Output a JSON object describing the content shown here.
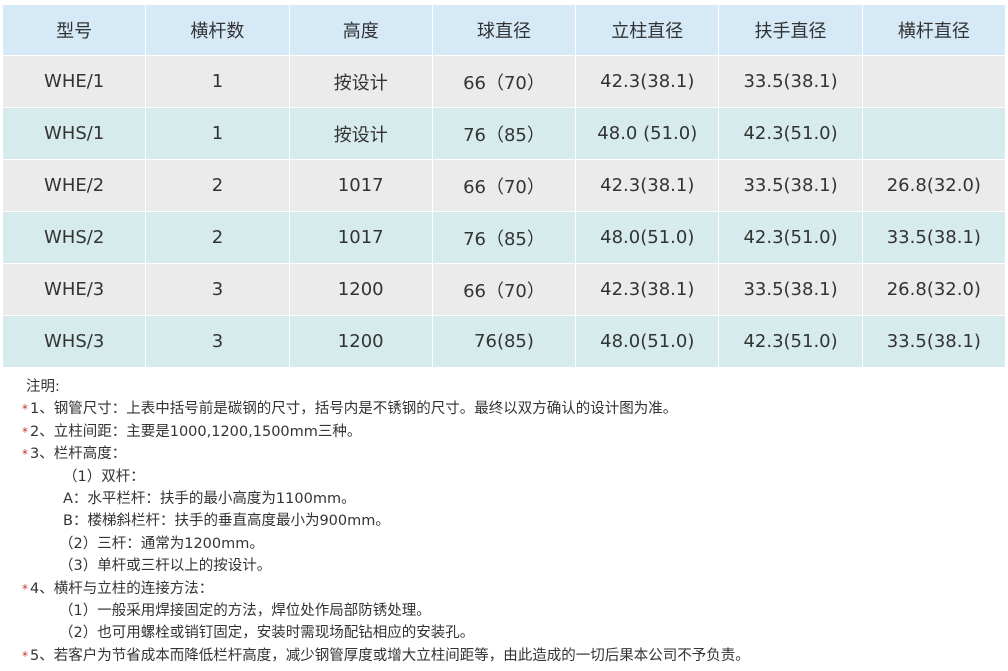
{
  "table": {
    "headers": [
      "型号",
      "横杆数",
      "高度",
      "球直径",
      "立柱直径",
      "扶手直径",
      "横杆直径"
    ],
    "rows": [
      [
        "WHE/1",
        "1",
        "按设计",
        "66（70）",
        "42.3(38.1)",
        "33.5(38.1)",
        ""
      ],
      [
        "WHS/1",
        "1",
        "按设计",
        "76（85）",
        "48.0 (51.0)",
        "42.3(51.0)",
        ""
      ],
      [
        "WHE/2",
        "2",
        "1017",
        "66（70）",
        "42.3(38.1)",
        "33.5(38.1)",
        "26.8(32.0)"
      ],
      [
        "WHS/2",
        "2",
        "1017",
        "76（85）",
        "48.0(51.0)",
        "42.3(51.0)",
        "33.5(38.1)"
      ],
      [
        "WHE/3",
        "3",
        "1200",
        "66（70）",
        "42.3(38.1)",
        "33.5(38.1)",
        "26.8(32.0)"
      ],
      [
        "WHS/3",
        "3",
        "1200",
        "76(85)",
        "48.0(51.0)",
        "42.3(51.0)",
        "33.5(38.1)"
      ]
    ]
  },
  "notes": {
    "title": "注明:",
    "lines": [
      {
        "star": true,
        "indent": 0,
        "text": "1、钢管尺寸：上表中括号前是碳钢的尺寸，括号内是不锈钢的尺寸。最终以双方确认的设计图为准。"
      },
      {
        "star": true,
        "indent": 0,
        "text": "2、立柱间距：主要是1000,1200,1500mm三种。"
      },
      {
        "star": true,
        "indent": 0,
        "text": "3、栏杆高度："
      },
      {
        "star": false,
        "indent": 1,
        "text": "（1）双杆："
      },
      {
        "star": false,
        "indent": 1,
        "text": "A：水平栏杆：扶手的最小高度为1100mm。"
      },
      {
        "star": false,
        "indent": 1,
        "text": "B：楼梯斜栏杆：扶手的垂直高度最小为900mm。"
      },
      {
        "star": false,
        "indent": 2,
        "text": "（2）三杆：通常为1200mm。"
      },
      {
        "star": false,
        "indent": 2,
        "text": "（3）单杆或三杆以上的按设计。"
      },
      {
        "star": true,
        "indent": 0,
        "text": "4、横杆与立柱的连接方法："
      },
      {
        "star": false,
        "indent": 2,
        "text": "（1）一般采用焊接固定的方法，焊位处作局部防锈处理。"
      },
      {
        "star": false,
        "indent": 2,
        "text": "（2）也可用螺栓或销钉固定，安装时需现场配钻相应的安装孔。"
      },
      {
        "star": true,
        "indent": 0,
        "text": "5、若客户为节省成本而降低栏杆高度，减少钢管厚度或增大立柱间距等，由此造成的一切后果本公司不予负责。"
      }
    ],
    "star_symbol": "*"
  }
}
